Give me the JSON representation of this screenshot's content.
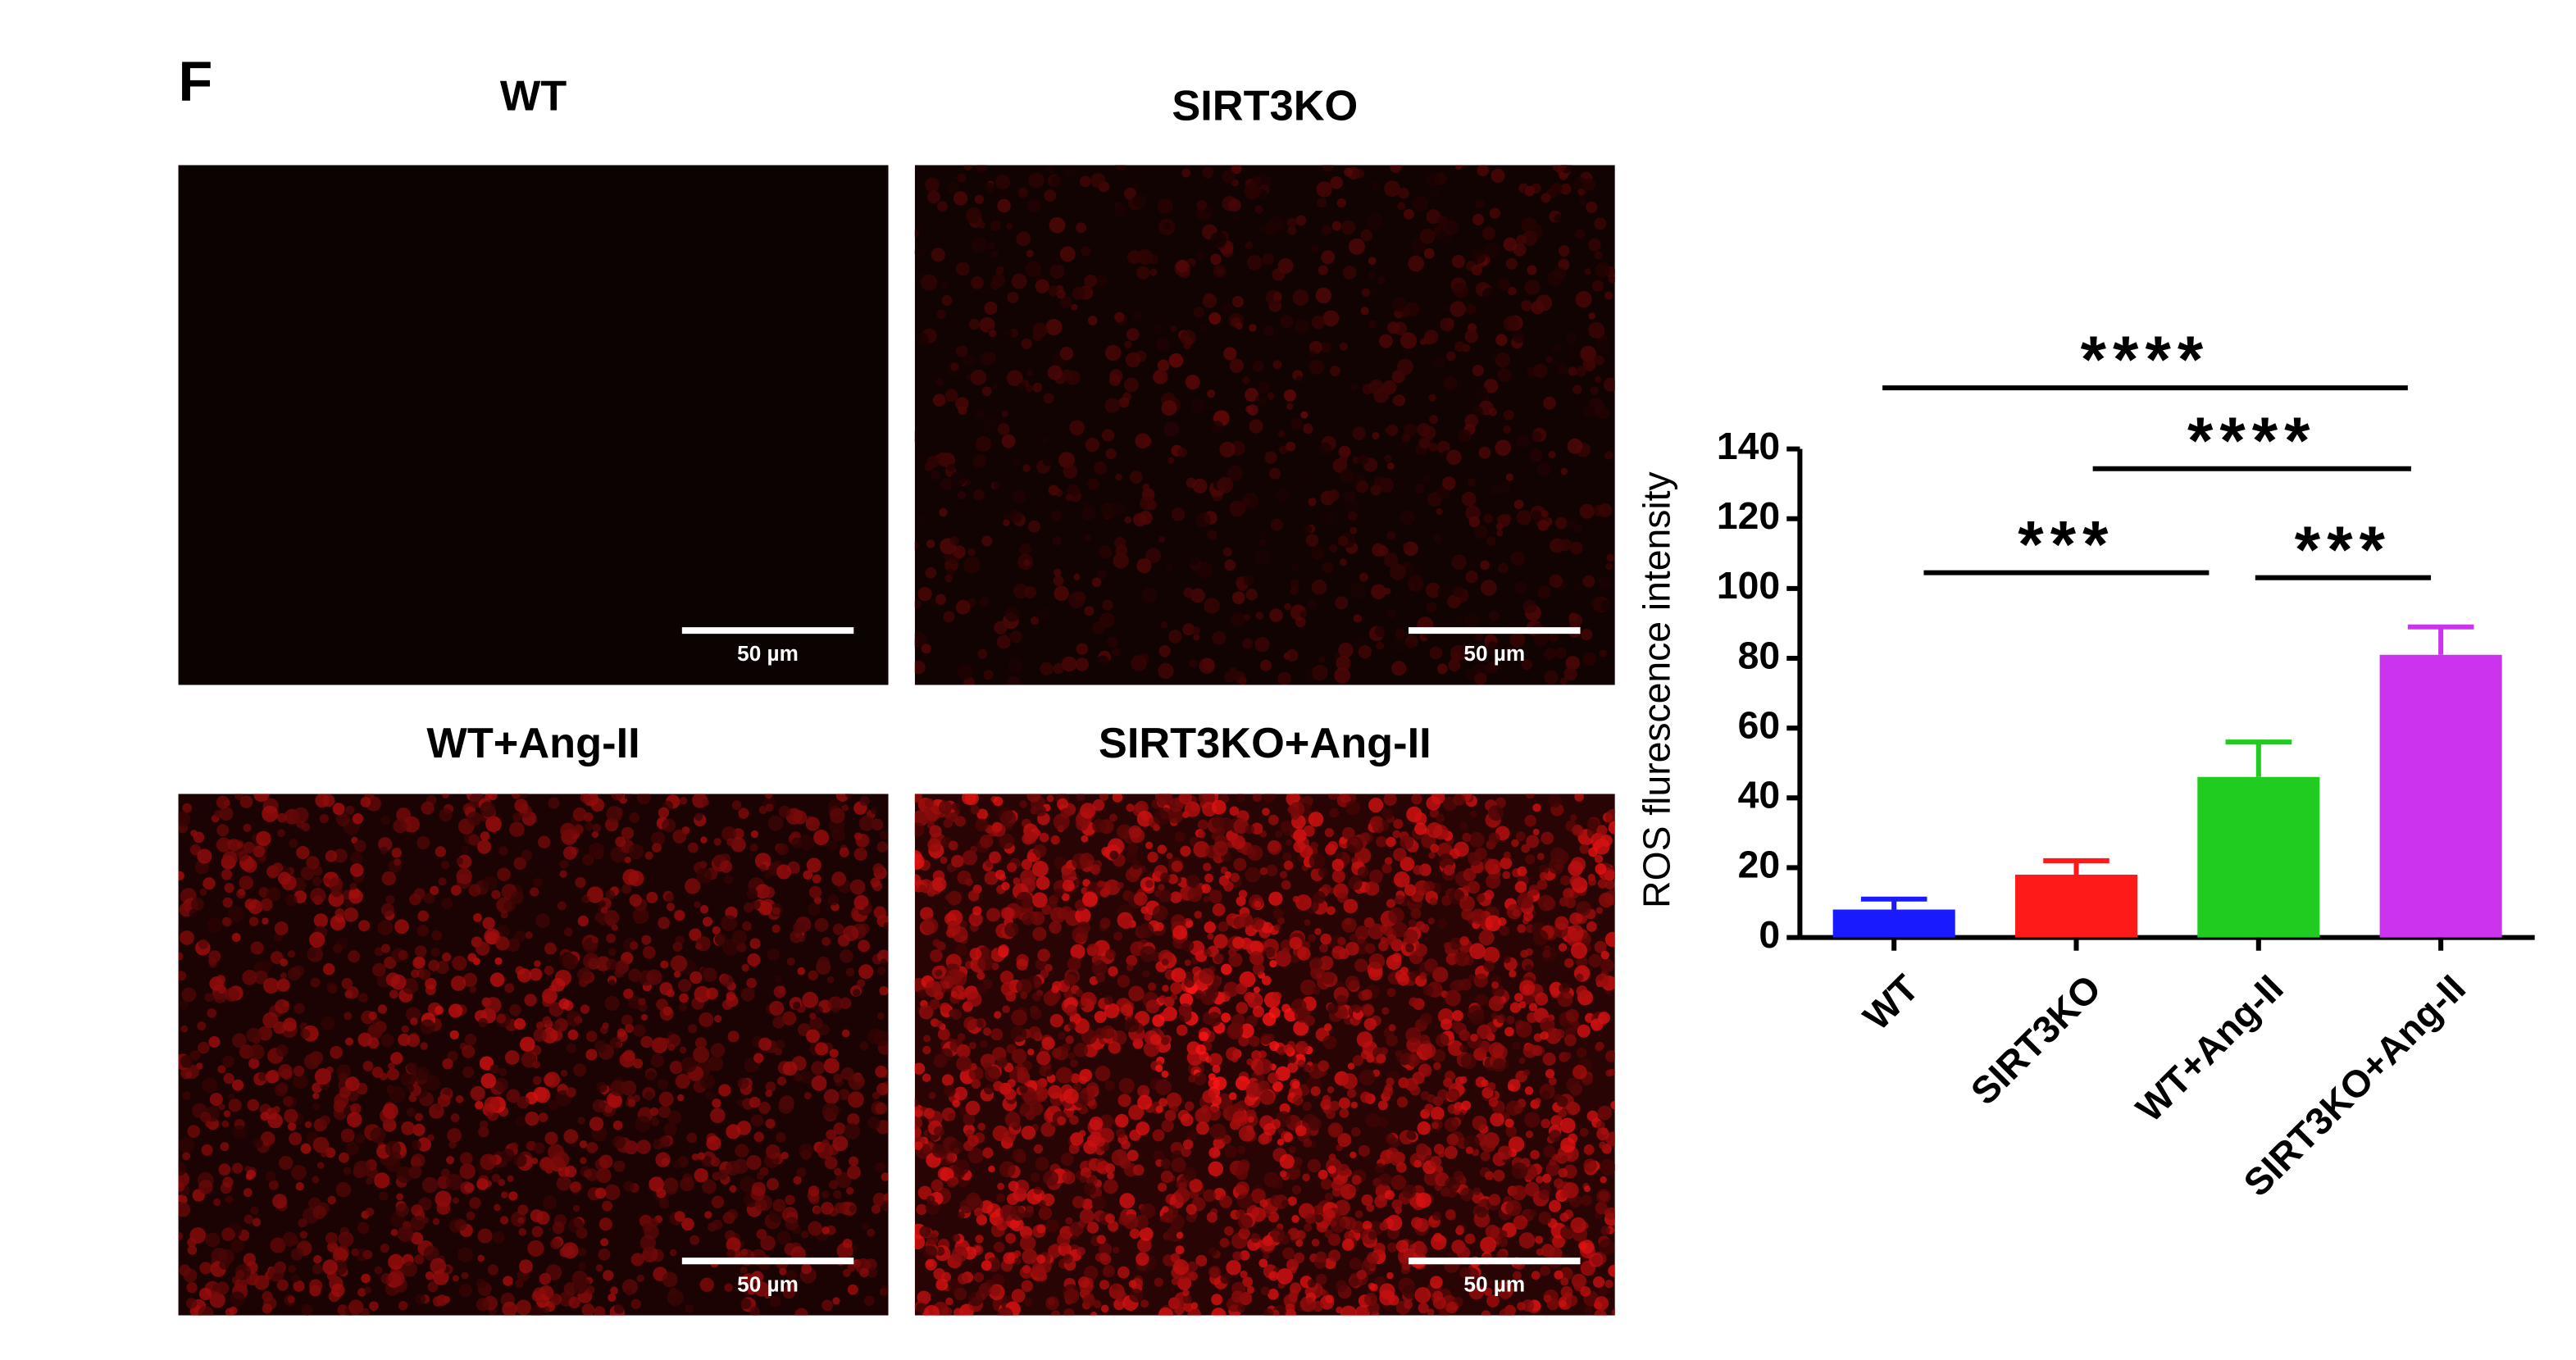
{
  "panel_label": "F",
  "images": [
    {
      "title": "WT",
      "scale_bar": "50 µm"
    },
    {
      "title": "SIRT3KO",
      "scale_bar": "50 µm"
    },
    {
      "title": "WT+Ang-II",
      "scale_bar": "50 µm"
    },
    {
      "title": "SIRT3KO+Ang-II",
      "scale_bar": "50 µm"
    }
  ],
  "chart_data": {
    "type": "bar",
    "y_label": "ROS flurescence intensity",
    "categories": [
      "WT",
      "SIRT3KO",
      "WT+Ang-II",
      "SIRT3KO+Ang-II"
    ],
    "values": [
      8,
      18,
      46,
      81
    ],
    "errors": [
      3,
      4,
      10,
      8
    ],
    "colors": [
      "#1a1aff",
      "#ff1a1a",
      "#1fcc1f",
      "#cc33ee"
    ],
    "ylim": [
      0,
      140
    ],
    "yticks": [
      0,
      20,
      40,
      60,
      80,
      100,
      120,
      140
    ],
    "annotations": [
      {
        "text": "****",
        "between": [
          0,
          3
        ]
      },
      {
        "text": "****",
        "between": [
          1,
          3
        ]
      },
      {
        "text": "***",
        "between": [
          0,
          2
        ]
      },
      {
        "text": "***",
        "between": [
          2,
          3
        ]
      }
    ]
  }
}
